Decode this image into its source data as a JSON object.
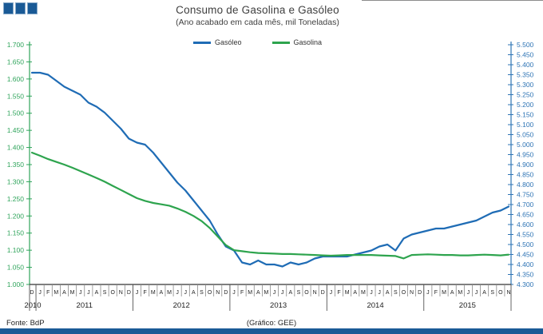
{
  "header": {
    "title": "Consumo de Gasolina e Gasóleo",
    "subtitle": "(Ano acabado em cada mês,  mil Toneladas)"
  },
  "legend": [
    {
      "label": "Gasóleo",
      "color": "#1F6CB5"
    },
    {
      "label": "Gasolina",
      "color": "#2EA44E"
    }
  ],
  "footer": {
    "source": "Fonte: BdP",
    "credit": "(Gráfico:  GEE)"
  },
  "colors": {
    "logo_blue": "#1A5A96",
    "bottom_bar_blue": "#1A5A96",
    "left_axis_green": "#2FA45B",
    "right_axis_blue": "#2E74B5",
    "x_axis": "#333333"
  },
  "chart_data": {
    "type": "line",
    "title": "Consumo de Gasolina e Gasóleo",
    "subtitle": "(Ano acabado em cada mês, mil Toneladas)",
    "grid": "off",
    "legend_position": "top-center",
    "x_months": [
      "D",
      "J",
      "F",
      "M",
      "A",
      "M",
      "J",
      "J",
      "A",
      "S",
      "O",
      "N",
      "D",
      "J",
      "F",
      "M",
      "A",
      "M",
      "J",
      "J",
      "A",
      "S",
      "O",
      "N",
      "D",
      "J",
      "F",
      "M",
      "A",
      "M",
      "J",
      "J",
      "A",
      "S",
      "O",
      "N",
      "D",
      "J",
      "F",
      "M",
      "A",
      "M",
      "J",
      "J",
      "A",
      "S",
      "O",
      "N",
      "D",
      "J",
      "F",
      "M",
      "A",
      "M",
      "J",
      "J",
      "A",
      "S",
      "O",
      "N"
    ],
    "years": [
      {
        "label": "2010",
        "months": 1
      },
      {
        "label": "2011",
        "months": 12
      },
      {
        "label": "2012",
        "months": 12
      },
      {
        "label": "2013",
        "months": 12
      },
      {
        "label": "2014",
        "months": 12
      },
      {
        "label": "2015",
        "months": 11
      }
    ],
    "left_axis": {
      "min": 1.0,
      "max": 1.7,
      "step": 0.05,
      "tick_labels": [
        "1.700",
        "1.650",
        "1.600",
        "1.550",
        "1.500",
        "1.450",
        "1.400",
        "1.350",
        "1.300",
        "1.250",
        "1.200",
        "1.150",
        "1.100",
        "1.050",
        "1.000"
      ]
    },
    "right_axis": {
      "min": 4.3,
      "max": 5.5,
      "step": 0.05,
      "tick_labels": [
        "5.500",
        "5.450",
        "5.400",
        "5.350",
        "5.300",
        "5.250",
        "5.200",
        "5.150",
        "5.100",
        "5.050",
        "5.000",
        "4.950",
        "4.900",
        "4.850",
        "4.800",
        "4.750",
        "4.700",
        "4.650",
        "4.600",
        "4.550",
        "4.500",
        "4.450",
        "4.400",
        "4.350",
        "4.300"
      ]
    },
    "series": [
      {
        "name": "Gasóleo",
        "axis": "right",
        "color": "#1F6CB5",
        "values": [
          5.36,
          5.36,
          5.35,
          5.32,
          5.29,
          5.27,
          5.25,
          5.21,
          5.19,
          5.16,
          5.12,
          5.08,
          5.03,
          5.01,
          5.0,
          4.96,
          4.91,
          4.86,
          4.81,
          4.77,
          4.72,
          4.67,
          4.62,
          4.55,
          4.49,
          4.47,
          4.41,
          4.4,
          4.42,
          4.4,
          4.4,
          4.39,
          4.41,
          4.4,
          4.41,
          4.43,
          4.44,
          4.44,
          4.44,
          4.44,
          4.45,
          4.46,
          4.47,
          4.49,
          4.5,
          4.47,
          4.53,
          4.55,
          4.56,
          4.57,
          4.58,
          4.58,
          4.59,
          4.6,
          4.61,
          4.62,
          4.64,
          4.66,
          4.67,
          4.69
        ]
      },
      {
        "name": "Gasolina",
        "axis": "left",
        "color": "#2EA44E",
        "values": [
          1.385,
          1.376,
          1.366,
          1.358,
          1.35,
          1.341,
          1.331,
          1.321,
          1.311,
          1.3,
          1.288,
          1.276,
          1.264,
          1.252,
          1.244,
          1.238,
          1.234,
          1.23,
          1.222,
          1.212,
          1.2,
          1.185,
          1.165,
          1.14,
          1.115,
          1.1,
          1.097,
          1.094,
          1.092,
          1.091,
          1.09,
          1.089,
          1.089,
          1.088,
          1.087,
          1.086,
          1.085,
          1.084,
          1.085,
          1.086,
          1.086,
          1.086,
          1.086,
          1.085,
          1.084,
          1.083,
          1.076,
          1.086,
          1.087,
          1.088,
          1.087,
          1.086,
          1.086,
          1.085,
          1.085,
          1.086,
          1.087,
          1.086,
          1.085,
          1.087
        ]
      }
    ]
  }
}
